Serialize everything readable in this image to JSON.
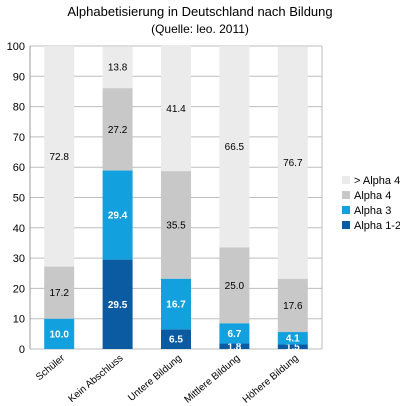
{
  "chart_data": {
    "type": "bar",
    "stacked": true,
    "title": "Alphabetisierung in Deutschland nach Bildung",
    "subtitle": "(Quelle: leo. 2011)",
    "categories": [
      "Schüler",
      "Kein Abschluss",
      "Untere Bildung",
      "Mittlere Bildung",
      "Höhere Bildung"
    ],
    "series": [
      {
        "name": "Alpha 1-2",
        "color": "#0b5ba2",
        "label_color": "#ffffff",
        "values": [
          0,
          29.5,
          6.5,
          1.8,
          1.5
        ]
      },
      {
        "name": "Alpha 3",
        "color": "#13a0df",
        "label_color": "#ffffff",
        "values": [
          10.0,
          29.4,
          16.7,
          6.7,
          4.1
        ]
      },
      {
        "name": "Alpha 4",
        "color": "#c8c8c8",
        "label_color": "#000000",
        "values": [
          17.2,
          27.2,
          35.5,
          25.0,
          17.6
        ]
      },
      {
        "name": "> Alpha 4",
        "color": "#ebebeb",
        "label_color": "#000000",
        "values": [
          72.8,
          13.8,
          41.4,
          66.5,
          76.7
        ]
      }
    ],
    "data_labels": [
      [
        "",
        "29.5",
        "6.5",
        "1.8",
        "1.5"
      ],
      [
        "10.0",
        "29.4",
        "16.7",
        "6.7",
        "4.1"
      ],
      [
        "17.2",
        "27.2",
        "35.5",
        "25.0",
        "17.6"
      ],
      [
        "72.8",
        "13.8",
        "41.4",
        "66.5",
        "76.7"
      ]
    ],
    "legend_order": [
      "> Alpha 4",
      "Alpha 4",
      "Alpha 3",
      "Alpha 1-2"
    ],
    "ylim": [
      0,
      100
    ],
    "yticks": [
      "0",
      "10",
      "20",
      "30",
      "40",
      "50",
      "60",
      "70",
      "80",
      "90",
      "100"
    ],
    "grid": true,
    "legend_position": "right"
  }
}
